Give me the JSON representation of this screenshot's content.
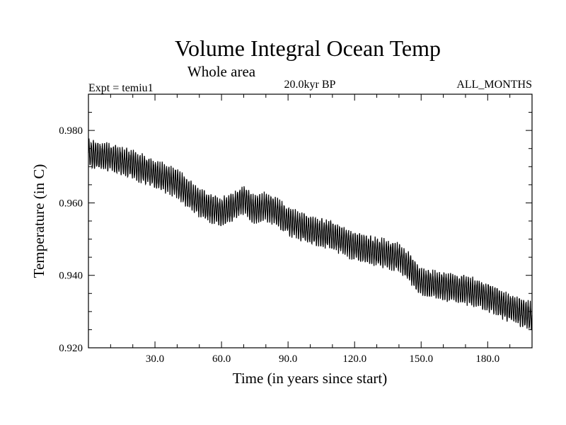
{
  "chart_data": {
    "type": "line",
    "title": "Volume Integral Ocean Temp",
    "subtitle": "Whole area",
    "annotations": {
      "left": "Expt = temiu1",
      "center": "20.0kyr BP",
      "right": "ALL_MONTHS"
    },
    "xlabel": "Time (in years since start)",
    "ylabel": "Temperature (in C)",
    "xlim": [
      0,
      200
    ],
    "ylim": [
      0.92,
      0.99
    ],
    "x_ticks": [
      30,
      60,
      90,
      120,
      150,
      180
    ],
    "x_tick_labels": [
      "30.0",
      "60.0",
      "90.0",
      "120.0",
      "150.0",
      "180.0"
    ],
    "y_ticks": [
      0.92,
      0.94,
      0.96,
      0.98
    ],
    "y_tick_labels": [
      "0.920",
      "0.940",
      "0.960",
      "0.980"
    ],
    "series": [
      {
        "name": "Volume Integral Ocean Temp",
        "color": "#000000",
        "seasonal_amplitude": 0.0035,
        "trend": {
          "x": [
            0,
            10,
            20,
            30,
            40,
            45,
            50,
            55,
            60,
            65,
            70,
            75,
            80,
            85,
            90,
            100,
            110,
            120,
            130,
            140,
            145,
            150,
            160,
            170,
            180,
            190,
            200
          ],
          "y": [
            0.9735,
            0.9725,
            0.9705,
            0.968,
            0.9655,
            0.9625,
            0.96,
            0.9585,
            0.9575,
            0.959,
            0.961,
            0.958,
            0.959,
            0.9575,
            0.955,
            0.9525,
            0.951,
            0.948,
            0.9465,
            0.945,
            0.942,
            0.938,
            0.937,
            0.936,
            0.934,
            0.931,
            0.9285
          ]
        }
      }
    ]
  }
}
